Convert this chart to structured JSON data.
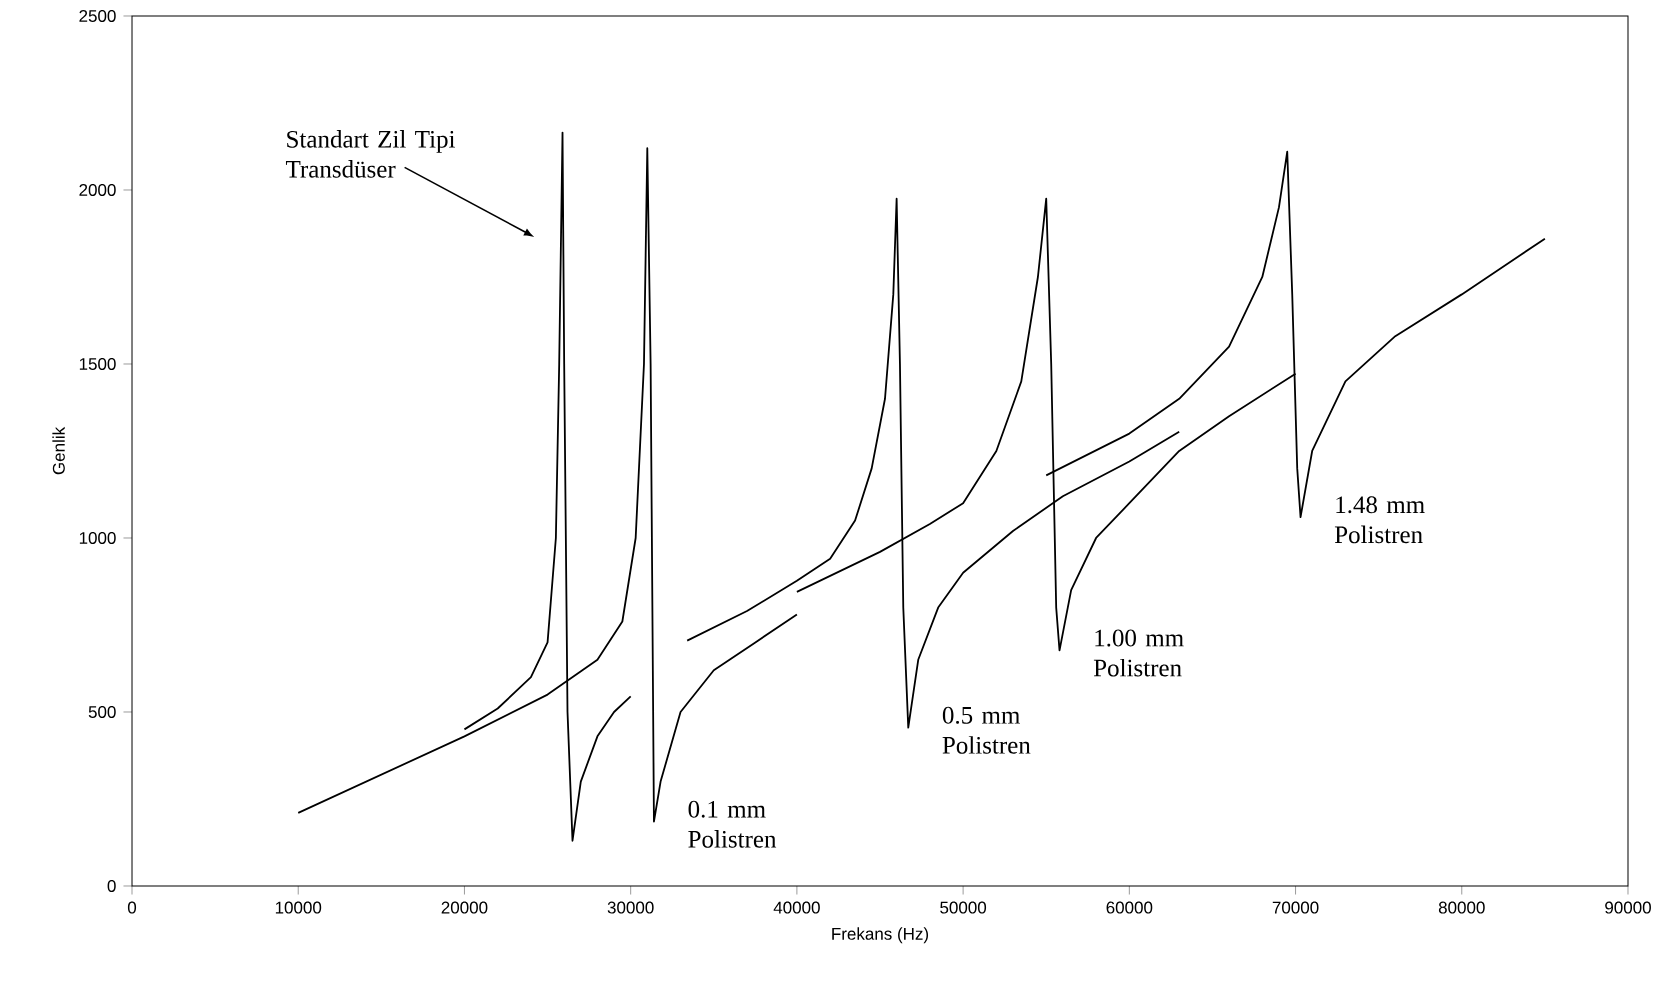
{
  "chart_data": {
    "type": "line",
    "xlabel": "Frekans (Hz)",
    "ylabel": "Genlik",
    "xlim": [
      0,
      90000
    ],
    "ylim": [
      0,
      2500
    ],
    "xticks": [
      0,
      10000,
      20000,
      30000,
      40000,
      50000,
      60000,
      70000,
      80000,
      90000
    ],
    "yticks": [
      0,
      500,
      1000,
      1500,
      2000,
      2500
    ],
    "grid": false,
    "legend": false,
    "marker": "none",
    "line_style": "solid",
    "series": [
      {
        "name": "Standart Zil Tipi Transdüser",
        "color": "#000000",
        "x": [
          20000,
          22000,
          24000,
          25000,
          25500,
          25700,
          25900,
          26000,
          26200,
          26500,
          27000,
          28000,
          29000,
          30000
        ],
        "values": [
          450,
          510,
          600,
          700,
          1000,
          1500,
          2165,
          1500,
          500,
          130,
          300,
          430,
          500,
          545
        ]
      },
      {
        "name": "0.1 mm Polistren",
        "color": "#000000",
        "x": [
          10000,
          20000,
          25000,
          28000,
          29500,
          30300,
          30800,
          31000,
          31200,
          31400,
          31800,
          33000,
          35000,
          37500,
          40000
        ],
        "values": [
          210,
          430,
          550,
          650,
          760,
          1000,
          1500,
          2120,
          1500,
          185,
          300,
          500,
          620,
          700,
          780
        ]
      },
      {
        "name": "0.5 mm Polistren",
        "color": "#000000",
        "x": [
          33400,
          37000,
          40000,
          42000,
          43500,
          44500,
          45300,
          45800,
          46000,
          46200,
          46400,
          46700,
          47300,
          48500,
          50000,
          53000,
          56000,
          60000,
          63000
        ],
        "values": [
          705,
          790,
          877,
          940,
          1050,
          1200,
          1400,
          1700,
          1975,
          1500,
          800,
          455,
          650,
          800,
          900,
          1020,
          1120,
          1220,
          1305
        ]
      },
      {
        "name": "1.00 mm Polistren",
        "color": "#000000",
        "x": [
          40000,
          45000,
          48000,
          50000,
          52000,
          53500,
          54500,
          55000,
          55300,
          55600,
          55800,
          56500,
          58000,
          60000,
          63000,
          66000,
          70000
        ],
        "values": [
          845,
          960,
          1040,
          1100,
          1250,
          1450,
          1750,
          1975,
          1500,
          800,
          677,
          850,
          1000,
          1100,
          1250,
          1350,
          1472
        ]
      },
      {
        "name": "1.48 mm Polistren",
        "color": "#000000",
        "x": [
          55000,
          60000,
          63000,
          66000,
          68000,
          69000,
          69500,
          69800,
          70100,
          70300,
          71000,
          73000,
          76000,
          80000,
          85000
        ],
        "values": [
          1180,
          1300,
          1400,
          1550,
          1750,
          1950,
          2110,
          1700,
          1200,
          1060,
          1250,
          1450,
          1580,
          1700,
          1860
        ]
      }
    ]
  }
}
